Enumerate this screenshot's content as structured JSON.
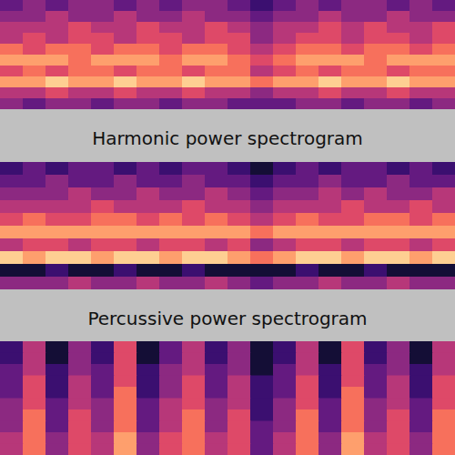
{
  "chart_data": [
    {
      "type": "heatmap",
      "tick_labels": false,
      "color_range": [
        0,
        10
      ],
      "cells": [
        [
          3,
          4,
          3,
          4,
          4,
          3,
          4,
          3,
          4,
          4,
          3,
          2,
          3,
          4,
          3,
          4,
          4,
          3,
          4,
          3
        ],
        [
          4,
          4,
          5,
          4,
          4,
          5,
          4,
          4,
          5,
          4,
          4,
          3,
          4,
          4,
          5,
          4,
          4,
          5,
          4,
          4
        ],
        [
          5,
          5,
          5,
          6,
          5,
          5,
          6,
          5,
          5,
          6,
          5,
          4,
          5,
          5,
          6,
          5,
          6,
          5,
          5,
          6
        ],
        [
          5,
          6,
          5,
          6,
          6,
          5,
          6,
          6,
          5,
          6,
          6,
          4,
          5,
          6,
          6,
          5,
          6,
          6,
          5,
          6
        ],
        [
          7,
          6,
          7,
          7,
          6,
          7,
          7,
          6,
          7,
          7,
          6,
          5,
          6,
          7,
          7,
          6,
          7,
          7,
          6,
          7
        ],
        [
          8,
          8,
          8,
          7,
          8,
          8,
          8,
          7,
          8,
          8,
          7,
          6,
          7,
          8,
          8,
          8,
          7,
          8,
          8,
          8
        ],
        [
          6,
          7,
          6,
          7,
          7,
          6,
          7,
          7,
          6,
          7,
          7,
          5,
          6,
          7,
          6,
          7,
          7,
          6,
          7,
          7
        ],
        [
          8,
          8,
          9,
          8,
          8,
          9,
          8,
          8,
          9,
          8,
          8,
          7,
          8,
          8,
          9,
          8,
          8,
          9,
          8,
          8
        ],
        [
          5,
          5,
          6,
          5,
          5,
          6,
          5,
          5,
          6,
          5,
          5,
          4,
          5,
          5,
          6,
          5,
          5,
          6,
          5,
          5
        ],
        [
          4,
          3,
          4,
          4,
          3,
          4,
          4,
          3,
          4,
          4,
          3,
          3,
          3,
          4,
          4,
          3,
          4,
          4,
          3,
          4
        ]
      ]
    },
    {
      "type": "heatmap",
      "title": "Harmonic power spectrogram",
      "tick_labels": false,
      "color_range": [
        0,
        10
      ],
      "cells": [
        [
          2,
          3,
          2,
          3,
          3,
          2,
          3,
          2,
          3,
          3,
          2,
          1,
          2,
          3,
          2,
          3,
          3,
          2,
          3,
          2
        ],
        [
          3,
          3,
          4,
          3,
          3,
          4,
          3,
          3,
          4,
          3,
          3,
          2,
          3,
          3,
          4,
          3,
          3,
          4,
          3,
          3
        ],
        [
          4,
          4,
          4,
          5,
          4,
          4,
          5,
          4,
          4,
          5,
          4,
          3,
          4,
          4,
          5,
          4,
          5,
          4,
          4,
          5
        ],
        [
          5,
          5,
          5,
          5,
          6,
          5,
          5,
          5,
          6,
          5,
          5,
          4,
          5,
          5,
          5,
          6,
          5,
          5,
          6,
          5
        ],
        [
          6,
          7,
          6,
          6,
          7,
          7,
          6,
          7,
          6,
          7,
          6,
          5,
          6,
          7,
          6,
          6,
          7,
          7,
          6,
          7
        ],
        [
          8,
          8,
          8,
          8,
          8,
          8,
          8,
          8,
          8,
          8,
          8,
          7,
          8,
          8,
          8,
          8,
          8,
          8,
          8,
          8
        ],
        [
          5,
          6,
          6,
          5,
          6,
          6,
          5,
          6,
          6,
          5,
          6,
          4,
          5,
          6,
          6,
          5,
          6,
          6,
          5,
          6
        ],
        [
          9,
          8,
          9,
          9,
          8,
          9,
          9,
          8,
          9,
          9,
          8,
          7,
          8,
          9,
          9,
          8,
          9,
          9,
          8,
          9
        ],
        [
          1,
          1,
          2,
          1,
          1,
          2,
          1,
          1,
          2,
          1,
          1,
          1,
          1,
          2,
          1,
          1,
          2,
          1,
          1,
          1
        ],
        [
          4,
          4,
          4,
          5,
          4,
          4,
          5,
          4,
          4,
          5,
          4,
          3,
          4,
          4,
          5,
          4,
          4,
          5,
          4,
          4
        ]
      ]
    },
    {
      "type": "heatmap",
      "title": "Percussive power spectrogram",
      "tick_labels": false,
      "color_range": [
        0,
        10
      ],
      "cells": [
        [
          2,
          5,
          1,
          4,
          2,
          6,
          1,
          3,
          5,
          2,
          4,
          1,
          2,
          5,
          1,
          6,
          2,
          4,
          1,
          5
        ],
        [
          2,
          5,
          1,
          4,
          2,
          6,
          1,
          3,
          5,
          2,
          4,
          1,
          2,
          5,
          1,
          6,
          2,
          4,
          1,
          5
        ],
        [
          3,
          5,
          2,
          4,
          3,
          6,
          2,
          4,
          5,
          3,
          4,
          1,
          3,
          5,
          2,
          6,
          3,
          4,
          2,
          5
        ],
        [
          3,
          6,
          2,
          5,
          3,
          6,
          2,
          4,
          6,
          3,
          5,
          2,
          3,
          6,
          2,
          6,
          3,
          5,
          2,
          6
        ],
        [
          3,
          6,
          2,
          5,
          3,
          7,
          2,
          4,
          6,
          3,
          5,
          2,
          3,
          6,
          2,
          7,
          3,
          5,
          2,
          6
        ],
        [
          4,
          6,
          3,
          5,
          4,
          7,
          3,
          5,
          6,
          4,
          5,
          2,
          4,
          6,
          3,
          7,
          4,
          5,
          3,
          6
        ],
        [
          4,
          7,
          3,
          6,
          4,
          7,
          3,
          5,
          7,
          4,
          6,
          2,
          4,
          7,
          3,
          7,
          4,
          6,
          3,
          7
        ],
        [
          4,
          7,
          3,
          6,
          4,
          7,
          3,
          5,
          7,
          4,
          6,
          3,
          4,
          7,
          3,
          7,
          4,
          6,
          3,
          7
        ],
        [
          5,
          7,
          4,
          6,
          5,
          8,
          4,
          6,
          7,
          5,
          6,
          3,
          5,
          7,
          4,
          8,
          5,
          6,
          4,
          7
        ],
        [
          5,
          7,
          4,
          6,
          5,
          8,
          4,
          6,
          7,
          5,
          6,
          3,
          5,
          7,
          4,
          8,
          5,
          6,
          4,
          7
        ]
      ]
    }
  ]
}
